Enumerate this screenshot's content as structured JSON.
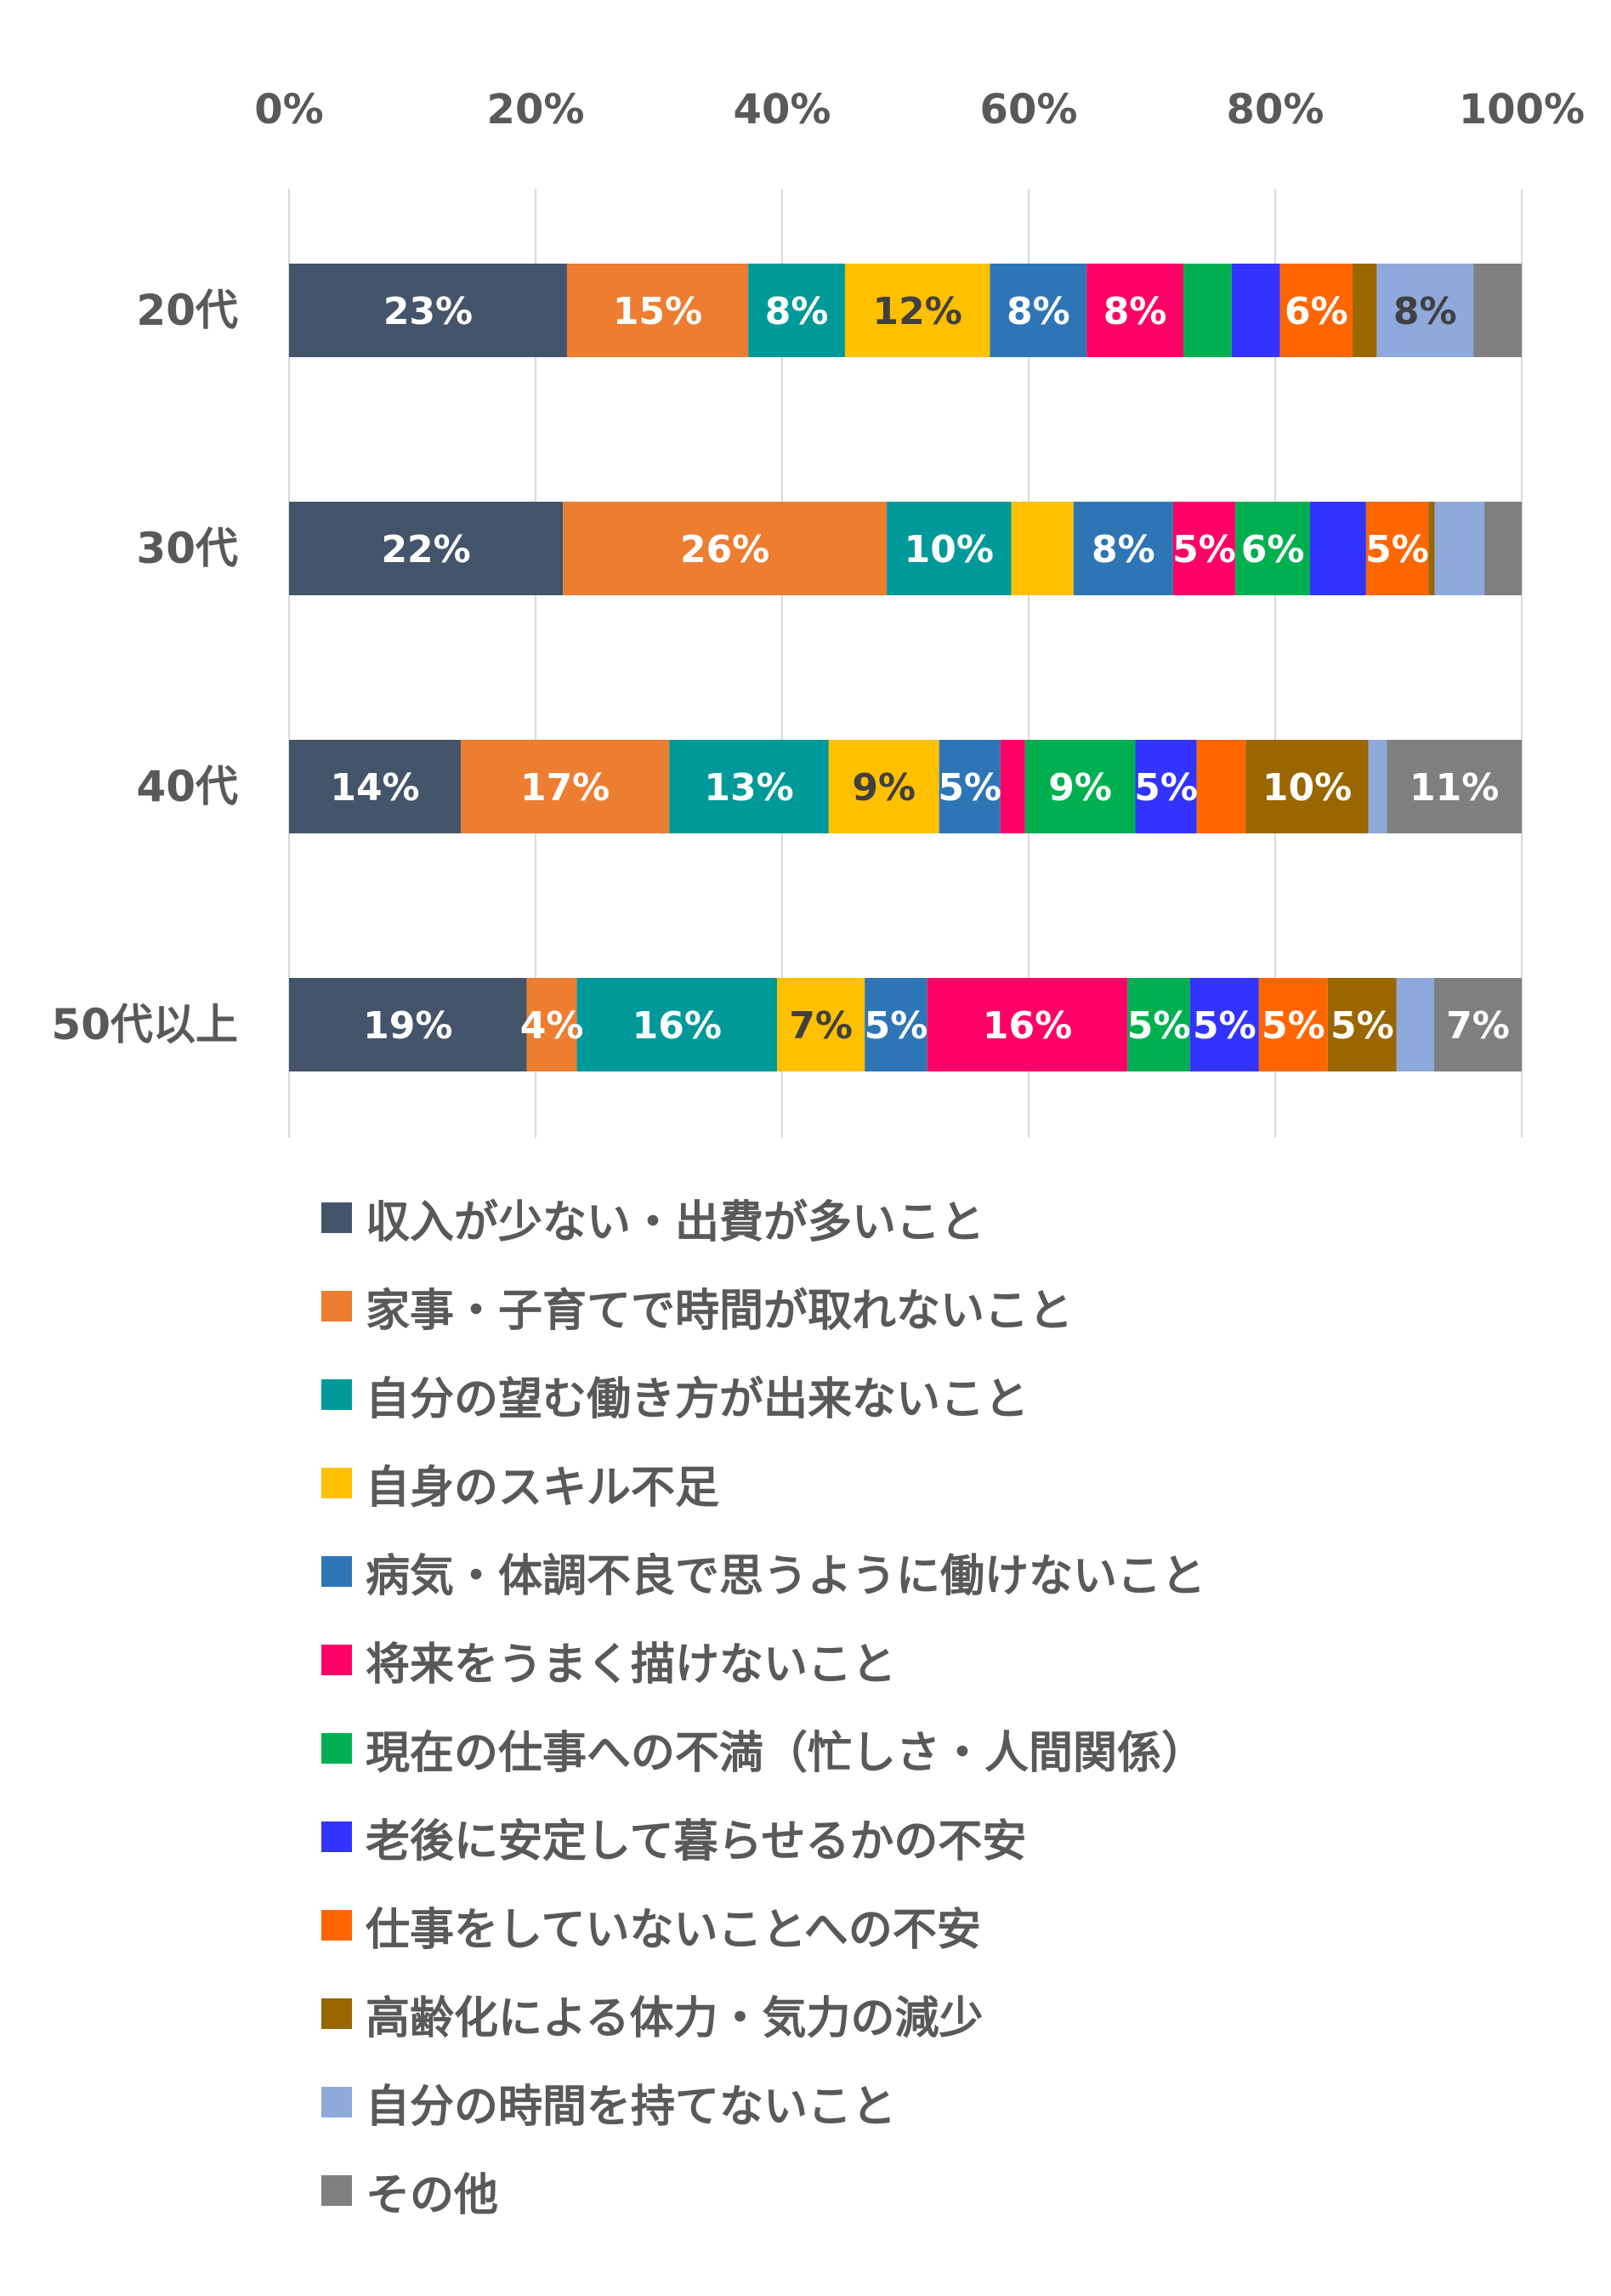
{
  "chart_data": {
    "type": "bar",
    "orientation": "horizontal",
    "stacked": "percent",
    "categories": [
      "20代",
      "30代",
      "40代",
      "50代以上"
    ],
    "x_ticks": [
      "0%",
      "20%",
      "40%",
      "60%",
      "80%",
      "100%"
    ],
    "xlim": [
      0,
      100
    ],
    "grid": "vertical",
    "legend_position": "bottom",
    "series": [
      {
        "name": "収入が少ない・出費が多いこと",
        "color": "#44546A",
        "label_color": "#FFFFFF",
        "values": [
          23,
          22,
          14,
          19
        ],
        "labels": [
          "23%",
          "22%",
          "14%",
          "19%"
        ]
      },
      {
        "name": "家事・子育てで時間が取れないこと",
        "color": "#ED7D31",
        "label_color": "#FFFFFF",
        "values": [
          15,
          26,
          17,
          4
        ],
        "labels": [
          "15%",
          "26%",
          "17%",
          "4%"
        ]
      },
      {
        "name": "自分の望む働き方が出来ないこと",
        "color": "#009999",
        "label_color": "#FFFFFF",
        "values": [
          8,
          10,
          13,
          16
        ],
        "labels": [
          "8%",
          "10%",
          "13%",
          "16%"
        ]
      },
      {
        "name": "自身のスキル不足",
        "color": "#FFC000",
        "label_color": "#404040",
        "values": [
          12,
          5,
          9,
          7
        ],
        "labels": [
          "12%",
          "",
          "9%",
          "7%"
        ]
      },
      {
        "name": "病気・体調不良で思うように働けないこと",
        "color": "#2E75B6",
        "label_color": "#FFFFFF",
        "values": [
          8,
          8,
          5,
          5
        ],
        "labels": [
          "8%",
          "8%",
          "5%",
          "5%"
        ]
      },
      {
        "name": "将来をうまく描けないこと",
        "color": "#FF0066",
        "label_color": "#FFFFFF",
        "values": [
          8,
          5,
          2,
          16
        ],
        "labels": [
          "8%",
          "5%",
          "",
          "16%"
        ]
      },
      {
        "name": "現在の仕事への不満（忙しさ・人間関係）",
        "color": "#00B050",
        "label_color": "#FFFFFF",
        "values": [
          4,
          6,
          9,
          5
        ],
        "labels": [
          "",
          "6%",
          "9%",
          "5%"
        ]
      },
      {
        "name": "老後に安定して暮らせるかの不安",
        "color": "#3333FF",
        "label_color": "#FFFFFF",
        "values": [
          4,
          4.5,
          5,
          5.5
        ],
        "labels": [
          "",
          "",
          "5%",
          "5%"
        ]
      },
      {
        "name": "仕事をしていないことへの不安",
        "color": "#FF6600",
        "label_color": "#FFFFFF",
        "values": [
          6,
          5,
          4,
          5.5
        ],
        "labels": [
          "6%",
          "5%",
          "",
          "5%"
        ]
      },
      {
        "name": "高齢化による体力・気力の減少",
        "color": "#996600",
        "label_color": "#FFFFFF",
        "values": [
          2,
          0.5,
          10,
          5.5
        ],
        "labels": [
          "",
          "",
          "10%",
          "5%"
        ]
      },
      {
        "name": "自分の時間を持てないこと",
        "color": "#8EA9DB",
        "label_color": "#404040",
        "values": [
          8,
          4,
          1.5,
          3
        ],
        "labels": [
          "8%",
          "",
          "",
          ""
        ]
      },
      {
        "name": "その他",
        "color": "#7F7F7F",
        "label_color": "#FFFFFF",
        "values": [
          4,
          3,
          11,
          7
        ],
        "labels": [
          "",
          "",
          "11%",
          "7%"
        ]
      }
    ]
  }
}
